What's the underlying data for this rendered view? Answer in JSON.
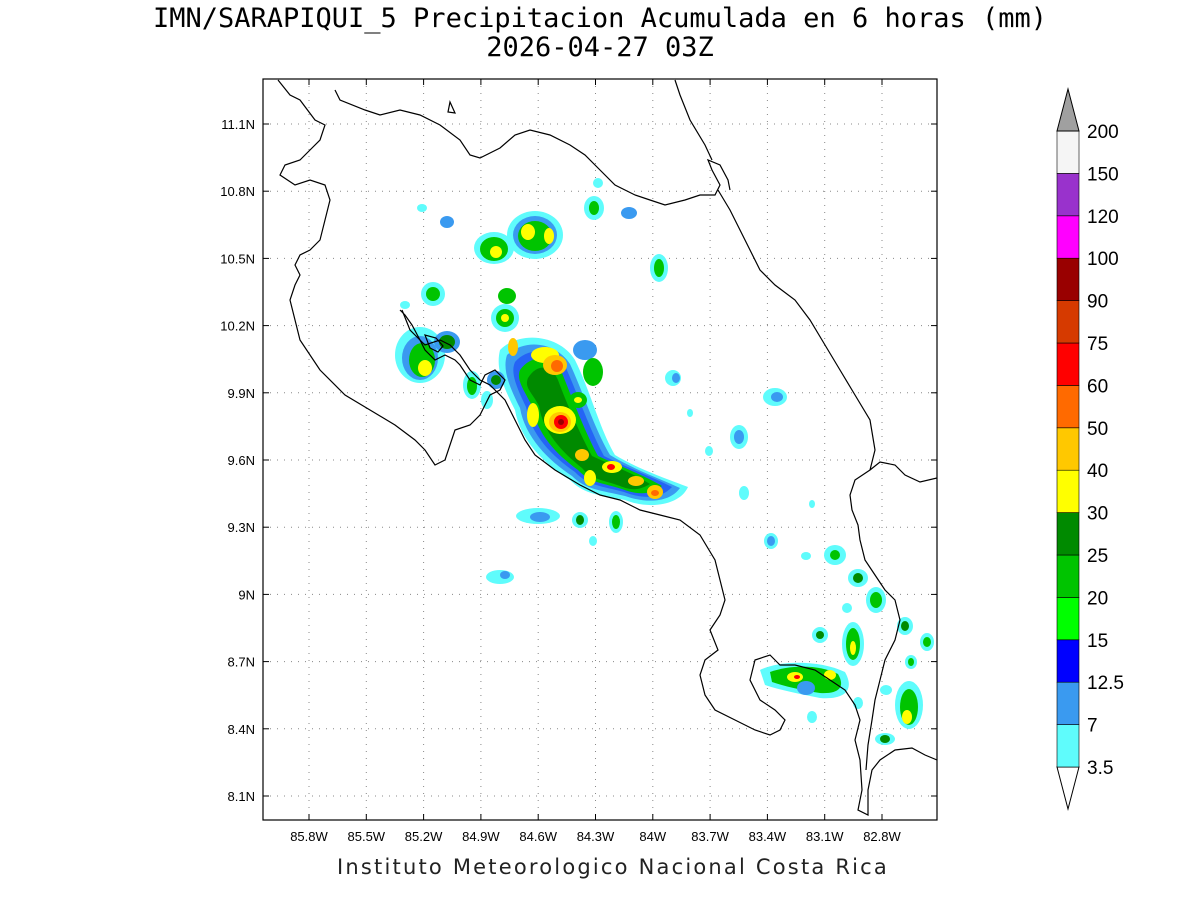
{
  "title": {
    "line1": "IMN/SARAPIQUI_5 Precipitacion Acumulada en 6 horas (mm)",
    "line2": "2026-04-27 03Z"
  },
  "credit": "Instituto Meteorologico Nacional Costa Rica",
  "map": {
    "lon_range": [
      -86.0,
      -83.0
    ],
    "lat_range": [
      8.0,
      11.3
    ],
    "lon_ticks": [
      "85.8W",
      "85.5W",
      "85.2W",
      "84.9W",
      "84.6W",
      "84.3W",
      "84W",
      "83.7W",
      "83.4W",
      "83.1W",
      "82.8W"
    ],
    "lat_ticks": [
      "11.1N",
      "10.8N",
      "10.5N",
      "10.2N",
      "9.9N",
      "9.6N",
      "9.3N",
      "9N",
      "8.7N",
      "8.4N",
      "8.1N"
    ],
    "grid": "dotted"
  },
  "colorbar": {
    "orientation": "vertical",
    "units": "mm",
    "levels": [
      "3.5",
      "7",
      "12.5",
      "15",
      "20",
      "25",
      "30",
      "40",
      "50",
      "60",
      "75",
      "90",
      "100",
      "120",
      "150",
      "200"
    ],
    "colors": [
      "#5ffcfc",
      "#3a9af0",
      "#0000ff",
      "#00ff00",
      "#00c400",
      "#008a00",
      "#ffff00",
      "#ffc800",
      "#ff6a00",
      "#ff0000",
      "#d63a00",
      "#990000",
      "#ff00ff",
      "#9932cc",
      "#f5f5f5",
      "#a0a0a0"
    ]
  }
}
